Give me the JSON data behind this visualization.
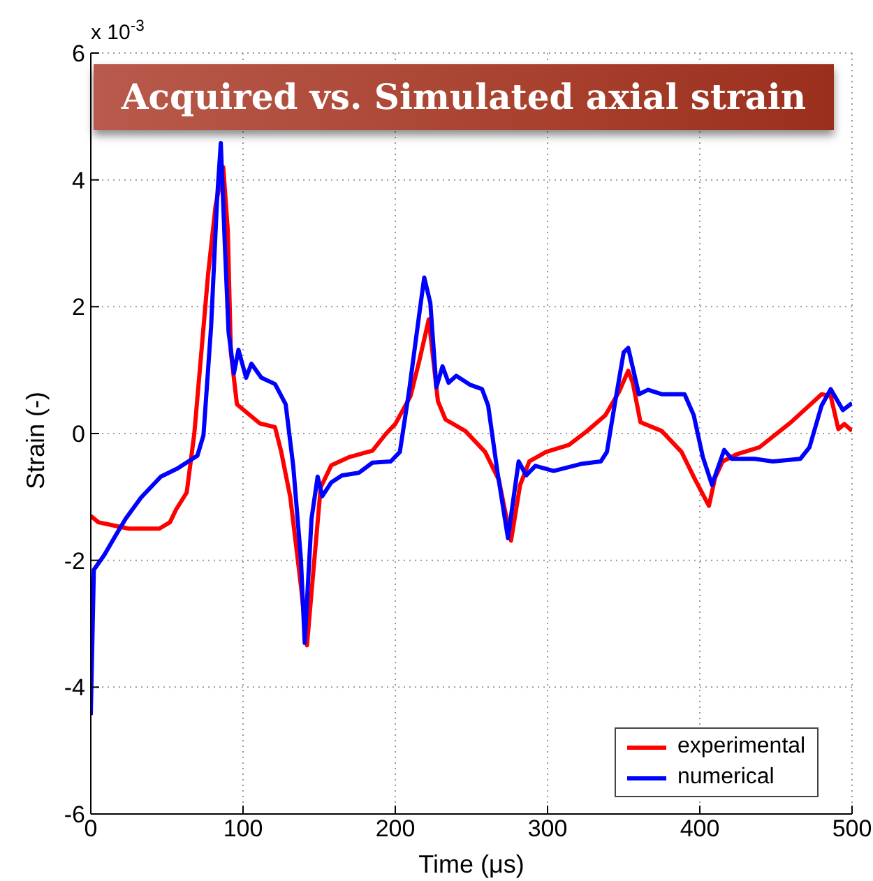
{
  "chart_data": {
    "type": "line",
    "title": "Acquired vs. Simulated axial strain",
    "xlabel": "Time (μs)",
    "ylabel": "Strain (-)",
    "annotations": [
      "x 10$^{-3}$"
    ],
    "xlim": [
      0,
      500
    ],
    "xticks": [
      0,
      100,
      200,
      300,
      400,
      500
    ],
    "ylim": [
      -6,
      6
    ],
    "yticks": [
      -6,
      -4,
      -2,
      0,
      2,
      4,
      6
    ],
    "grid": true,
    "legend": "bottom right",
    "line_style": "solid",
    "marker": "none",
    "series": [
      {
        "name": "experimental",
        "color": "#ff0000",
        "x": [
          0,
          5,
          15,
          25,
          35,
          45,
          52,
          56,
          63,
          68,
          77,
          82,
          87,
          90,
          92,
          96,
          104,
          111,
          121,
          125,
          131,
          138,
          142,
          145,
          148,
          151,
          158,
          170,
          179,
          185,
          194,
          200,
          210,
          216,
          222,
          228,
          233,
          246,
          259,
          268,
          276,
          282,
          288,
          299,
          314,
          326,
          338,
          347,
          353,
          356,
          361,
          375,
          388,
          397,
          406,
          410,
          415,
          424,
          439,
          460,
          480,
          486,
          491,
          495,
          500
        ],
        "values": [
          -1.3,
          -1.4,
          -1.45,
          -1.5,
          -1.5,
          -1.5,
          -1.4,
          -1.2,
          -0.93,
          0,
          2.5,
          3.6,
          4.2,
          3.2,
          1.28,
          0.46,
          0.3,
          0.16,
          0.1,
          -0.28,
          -1.0,
          -2.4,
          -3.34,
          -2.5,
          -1.67,
          -0.85,
          -0.5,
          -0.37,
          -0.31,
          -0.27,
          0,
          0.15,
          0.59,
          1.17,
          1.8,
          0.51,
          0.22,
          0.04,
          -0.29,
          -0.73,
          -1.69,
          -0.81,
          -0.44,
          -0.29,
          -0.18,
          0.04,
          0.29,
          0.66,
          0.99,
          0.8,
          0.18,
          0.04,
          -0.29,
          -0.73,
          -1.14,
          -0.7,
          -0.44,
          -0.33,
          -0.22,
          0.18,
          0.62,
          0.59,
          0.07,
          0.15,
          0.04
        ]
      },
      {
        "name": "numerical",
        "color": "#0000ff",
        "x": [
          0,
          2,
          9,
          16,
          23,
          33,
          46,
          57,
          70,
          74,
          79,
          83,
          85.4,
          88,
          90.5,
          94,
          97,
          102,
          105.5,
          112,
          121,
          128,
          133,
          138,
          140.5,
          145,
          149,
          152,
          158,
          165,
          176,
          185,
          197,
          203,
          209,
          215.5,
          219,
          223,
          227,
          231,
          235,
          240,
          249,
          257,
          261,
          267,
          274,
          281,
          286,
          292,
          304,
          322,
          335,
          339,
          344,
          350,
          353,
          360,
          366,
          375,
          390,
          396,
          402,
          408,
          416,
          421,
          436,
          448,
          466,
          472,
          480,
          486,
          494,
          500
        ],
        "values": [
          -4.44,
          -2.15,
          -1.91,
          -1.62,
          -1.34,
          -1.01,
          -0.68,
          -0.55,
          -0.35,
          -0.03,
          1.68,
          3.72,
          4.58,
          3.0,
          1.6,
          0.95,
          1.32,
          0.88,
          1.1,
          0.88,
          0.78,
          0.46,
          -0.52,
          -1.98,
          -3.3,
          -1.34,
          -0.68,
          -0.99,
          -0.77,
          -0.66,
          -0.62,
          -0.46,
          -0.44,
          -0.29,
          0.66,
          1.84,
          2.46,
          2.06,
          0.73,
          1.06,
          0.8,
          0.91,
          0.77,
          0.7,
          0.44,
          -0.59,
          -1.65,
          -0.44,
          -0.66,
          -0.51,
          -0.59,
          -0.48,
          -0.44,
          -0.29,
          0.44,
          1.28,
          1.35,
          0.62,
          0.69,
          0.62,
          0.62,
          0.29,
          -0.37,
          -0.81,
          -0.26,
          -0.4,
          -0.4,
          -0.44,
          -0.4,
          -0.22,
          0.44,
          0.7,
          0.37,
          0.48
        ]
      }
    ]
  }
}
